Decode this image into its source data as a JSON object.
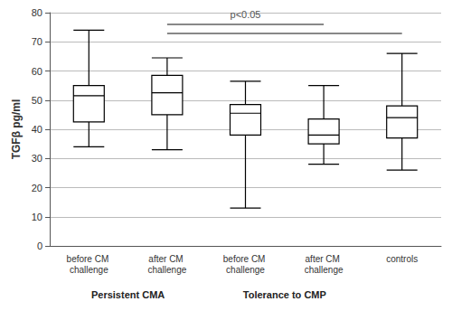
{
  "chart_data": {
    "type": "boxplot",
    "y_label": "TGFβ pg/ml",
    "categories": [
      "before CM challenge",
      "after CM challenge",
      "before CM challenge",
      "after CM challenge",
      "controls"
    ],
    "values": [
      [
        34,
        42.5,
        51.5,
        55,
        74
      ],
      [
        33,
        45,
        52.5,
        58.5,
        64.5
      ],
      [
        13,
        38,
        45.5,
        48.5,
        56.5
      ],
      [
        28,
        35,
        38,
        43.5,
        55
      ],
      [
        26,
        37,
        44,
        48,
        66
      ]
    ],
    "color": "#000000",
    "ylim": [
      0,
      80
    ],
    "yticks": [
      0,
      10,
      20,
      30,
      40,
      50,
      60,
      70,
      80
    ],
    "grid": true,
    "annotations": [
      {
        "text": "p<0.05",
        "from": 1,
        "to": 3,
        "y": 76
      },
      {
        "from": 1,
        "to": 4,
        "y": 73
      }
    ],
    "groups": [
      {
        "label": "Persistent CMA",
        "from": 0,
        "to": 1
      },
      {
        "label": "Tolerance to CMP",
        "from": 2,
        "to": 3
      }
    ]
  }
}
